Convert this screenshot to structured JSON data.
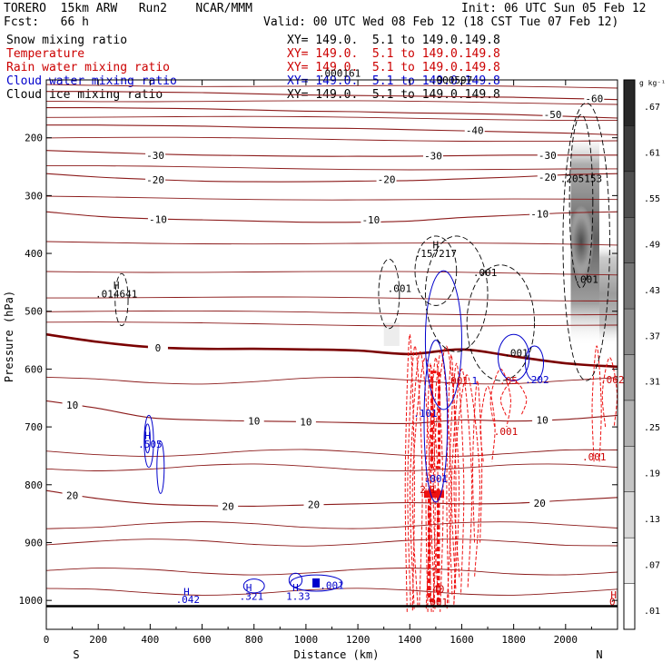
{
  "header": {
    "model": "TORERO  15km ARW   Run2    NCAR/MMM",
    "init": "Init: 06 UTC Sun 05 Feb 12",
    "fcst": "Fcst:   66 h",
    "valid": "Valid: 00 UTC Wed 08 Feb 12 (18 CST Tue 07 Feb 12)",
    "legend": [
      {
        "label": "Snow mixing ratio",
        "xy": "XY= 149.0.  5.1 to 149.0.149.8",
        "color": "#000000"
      },
      {
        "label": "Temperature",
        "xy": "XY= 149.0.  5.1 to 149.0.149.8",
        "color": "#cc0000"
      },
      {
        "label": "Rain water mixing ratio",
        "xy": "XY= 149.0.  5.1 to 149.0.149.8",
        "color": "#cc0000"
      },
      {
        "label": "Cloud water mixing ratio",
        "xy": "XY= 149.0.  5.1 to 149.0.149.8",
        "color": "#0000cc"
      },
      {
        "label": "Cloud ice mixing ratio",
        "xy": "XY= 149.0.  5.1 to 149.0.149.8",
        "color": "#000000"
      }
    ]
  },
  "chart_data": {
    "type": "contour",
    "xlabel": "Distance (km)",
    "ylabel": "Pressure (hPa)",
    "xlim": [
      0,
      2200
    ],
    "ylim": [
      1050,
      100
    ],
    "xticks": [
      0,
      200,
      400,
      600,
      800,
      1000,
      1200,
      1400,
      1600,
      1800,
      2000
    ],
    "yticks": [
      200,
      300,
      400,
      500,
      600,
      700,
      800,
      900,
      1000
    ],
    "x_end_labels": {
      "left": "S",
      "right": "N"
    },
    "colorbar": {
      "unit": "g kg⁻¹",
      "ticks": [
        ".67",
        ".61",
        ".55",
        ".49",
        ".43",
        ".37",
        ".31",
        ".25",
        ".19",
        ".13",
        ".07",
        ".01"
      ]
    },
    "temperature_isotherms": [
      {
        "value": -60,
        "pressures": [
          120,
          120,
          121,
          122,
          124,
          126,
          127,
          128,
          129,
          130,
          132,
          134
        ]
      },
      {
        "value": -50,
        "pressures": [
          148,
          148,
          149,
          150,
          152,
          154,
          155,
          157,
          158,
          160,
          163,
          166
        ]
      },
      {
        "value": -40,
        "pressures": [
          178,
          178,
          179,
          180,
          182,
          183,
          184,
          186,
          188,
          190,
          192,
          195
        ]
      },
      {
        "value": -30,
        "pressures": [
          222,
          225,
          228,
          230,
          231,
          232,
          232,
          232,
          231,
          230,
          230,
          230
        ]
      },
      {
        "value": -20,
        "pressures": [
          262,
          268,
          272,
          275,
          276,
          276,
          275,
          274,
          271,
          268,
          264,
          262
        ]
      },
      {
        "value": -10,
        "pressures": [
          328,
          336,
          340,
          342,
          344,
          346,
          346,
          344,
          338,
          334,
          330,
          328
        ]
      },
      {
        "value": 0,
        "pressures": [
          540,
          553,
          562,
          565,
          565,
          566,
          568,
          574,
          566,
          578,
          590,
          596
        ]
      },
      {
        "value": 10,
        "pressures": [
          655,
          668,
          684,
          688,
          690,
          691,
          693,
          694,
          688,
          690,
          687,
          680
        ]
      },
      {
        "value": 20,
        "pressures": [
          810,
          824,
          833,
          836,
          837,
          835,
          833,
          831,
          833,
          832,
          827,
          822
        ]
      }
    ],
    "isotherm_x": [
      0,
      200,
      400,
      600,
      800,
      1000,
      1200,
      1400,
      1600,
      1800,
      2000,
      2200
    ],
    "temperature_labels": [
      {
        "text": "-60",
        "x": 2110,
        "p": 132
      },
      {
        "text": "-50",
        "x": 1950,
        "p": 160
      },
      {
        "text": "-40",
        "x": 1650,
        "p": 187
      },
      {
        "text": "-30",
        "x": 420,
        "p": 230
      },
      {
        "text": "-30",
        "x": 1490,
        "p": 231
      },
      {
        "text": "-30",
        "x": 1930,
        "p": 230
      },
      {
        "text": "-20",
        "x": 420,
        "p": 273
      },
      {
        "text": "-20",
        "x": 1310,
        "p": 272
      },
      {
        "text": "-20",
        "x": 1930,
        "p": 268
      },
      {
        "text": "-10",
        "x": 430,
        "p": 341
      },
      {
        "text": "-10",
        "x": 1250,
        "p": 342
      },
      {
        "text": "-10",
        "x": 1900,
        "p": 332
      },
      {
        "text": "0",
        "x": 430,
        "p": 563
      },
      {
        "text": "10",
        "x": 100,
        "p": 662
      },
      {
        "text": "10",
        "x": 800,
        "p": 690
      },
      {
        "text": "10",
        "x": 1000,
        "p": 691
      },
      {
        "text": "10",
        "x": 1910,
        "p": 688
      },
      {
        "text": "20",
        "x": 100,
        "p": 818
      },
      {
        "text": "20",
        "x": 700,
        "p": 837
      },
      {
        "text": "20",
        "x": 1030,
        "p": 834
      },
      {
        "text": "20",
        "x": 1900,
        "p": 832
      }
    ],
    "max_labels": [
      {
        "text": "H",
        "x": 270,
        "p": 455,
        "color": "#000000"
      },
      {
        "text": ".014641",
        "x": 270,
        "p": 470,
        "color": "#000000"
      },
      {
        "text": ".000161",
        "x": 1130,
        "p": 88,
        "color": "#000000"
      },
      {
        "text": ".000597",
        "x": 1560,
        "p": 100,
        "color": "#000000"
      },
      {
        "text": ".205153",
        "x": 2060,
        "p": 270,
        "color": "#000000"
      },
      {
        "text": "H",
        "x": 1500,
        "p": 385,
        "color": "#000000"
      },
      {
        "text": ".157217",
        "x": 1500,
        "p": 400,
        "color": "#000000"
      },
      {
        "text": ".001",
        "x": 1360,
        "p": 460,
        "color": "#000000"
      },
      {
        "text": ".001",
        "x": 1690,
        "p": 433,
        "color": "#000000"
      },
      {
        "text": ".001",
        "x": 1810,
        "p": 572,
        "color": "#000000"
      },
      {
        "text": ".001",
        "x": 2080,
        "p": 445,
        "color": "#000000"
      },
      {
        "text": ".05",
        "x": 1780,
        "p": 620,
        "color": "#cc0000"
      },
      {
        "text": ".001",
        "x": 1770,
        "p": 708,
        "color": "#cc0000"
      },
      {
        "text": ".001",
        "x": 2110,
        "p": 752,
        "color": "#cc0000"
      },
      {
        "text": ".062",
        "x": 2180,
        "p": 618,
        "color": "#cc0000"
      },
      {
        "text": ".001",
        "x": 1500,
        "p": 1003,
        "color": "#cc0000"
      },
      {
        "text": "2",
        "x": 1450,
        "p": 808,
        "color": "#cc0000"
      },
      {
        "text": "1",
        "x": 1490,
        "p": 808,
        "color": "#cc0000"
      },
      {
        "text": "40",
        "x": 1510,
        "p": 980,
        "color": "#cc0000"
      },
      {
        "text": ".001",
        "x": 1580,
        "p": 620,
        "color": "#cc0000"
      },
      {
        "text": "H",
        "x": 2185,
        "p": 990,
        "color": "#cc0000"
      },
      {
        "text": "0",
        "x": 2180,
        "p": 1002,
        "color": "#cc0000"
      },
      {
        "text": "H",
        "x": 390,
        "p": 715,
        "color": "#0000cc"
      },
      {
        "text": ".505",
        "x": 400,
        "p": 730,
        "color": "#0000cc"
      },
      {
        "text": "H",
        "x": 540,
        "p": 985,
        "color": "#0000cc"
      },
      {
        "text": ".042",
        "x": 545,
        "p": 998,
        "color": "#0000cc"
      },
      {
        "text": "H",
        "x": 780,
        "p": 978,
        "color": "#0000cc"
      },
      {
        "text": ".321",
        "x": 790,
        "p": 993,
        "color": "#0000cc"
      },
      {
        "text": "H",
        "x": 960,
        "p": 978,
        "color": "#0000cc"
      },
      {
        "text": "1.33",
        "x": 970,
        "p": 993,
        "color": "#0000cc"
      },
      {
        "text": ".001",
        "x": 1100,
        "p": 974,
        "color": "#0000cc"
      },
      {
        "text": ".202",
        "x": 1890,
        "p": 618,
        "color": "#0000cc"
      },
      {
        "text": ".101",
        "x": 1460,
        "p": 676,
        "color": "#0000cc"
      },
      {
        "text": ".001",
        "x": 1500,
        "p": 789,
        "color": "#0000cc"
      },
      {
        "text": "1",
        "x": 1650,
        "p": 620,
        "color": "#0000cc"
      }
    ],
    "snow_max": {
      "x": 2060,
      "p": 365,
      "value": 0.205
    },
    "ground_pressure": 1010
  },
  "colors": {
    "isotherm": "#8b1a1a",
    "zero_isotherm": "#7a0000",
    "rain": "#ee1111",
    "cloud_water": "#0000cc",
    "snow": "#000000"
  }
}
